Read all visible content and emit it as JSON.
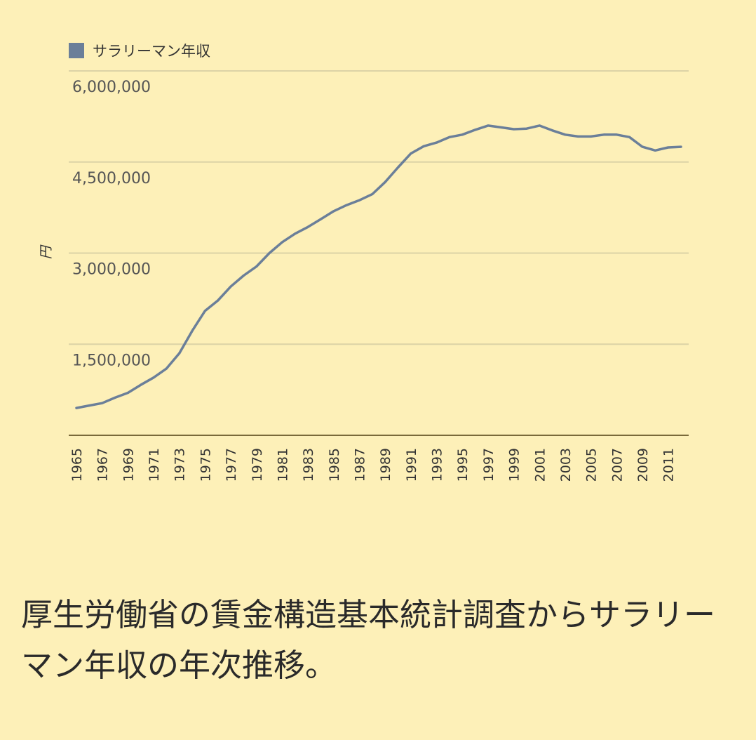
{
  "caption": "厚生労働省の賃金構造基本統計調査からサラリーマン年収の年次推移。",
  "chart_data": {
    "type": "line",
    "title": "",
    "xlabel": "",
    "ylabel": "円",
    "ylim": [
      0,
      6000000
    ],
    "yticks": [
      "1,500,000",
      "3,000,000",
      "4,500,000",
      "6,000,000"
    ],
    "ytick_values": [
      1500000,
      3000000,
      4500000,
      6000000
    ],
    "grid": true,
    "legend_position": "top-left",
    "x_tick_labels": [
      "1965",
      "1967",
      "1969",
      "1971",
      "1973",
      "1975",
      "1977",
      "1979",
      "1981",
      "1983",
      "1985",
      "1987",
      "1989",
      "1991",
      "1993",
      "1995",
      "1997",
      "1999",
      "2001",
      "2003",
      "2005",
      "2007",
      "2009",
      "2011"
    ],
    "x": [
      1965,
      1966,
      1967,
      1968,
      1969,
      1970,
      1971,
      1972,
      1973,
      1974,
      1975,
      1976,
      1977,
      1978,
      1979,
      1980,
      1981,
      1982,
      1983,
      1984,
      1985,
      1986,
      1987,
      1988,
      1989,
      1990,
      1991,
      1992,
      1993,
      1994,
      1995,
      1996,
      1997,
      1998,
      1999,
      2000,
      2001,
      2002,
      2003,
      2004,
      2005,
      2006,
      2007,
      2008,
      2009,
      2010,
      2011,
      2012
    ],
    "series": [
      {
        "name": "サラリーマン年収",
        "color": "#6b7f99",
        "values": [
          450000,
          490000,
          530000,
          620000,
          700000,
          830000,
          950000,
          1100000,
          1350000,
          1720000,
          2050000,
          2220000,
          2450000,
          2630000,
          2780000,
          3000000,
          3180000,
          3320000,
          3430000,
          3560000,
          3690000,
          3790000,
          3870000,
          3970000,
          4170000,
          4410000,
          4640000,
          4760000,
          4820000,
          4910000,
          4950000,
          5030000,
          5100000,
          5070000,
          5040000,
          5050000,
          5100000,
          5020000,
          4950000,
          4920000,
          4920000,
          4950000,
          4950000,
          4910000,
          4750000,
          4690000,
          4740000,
          4750000
        ]
      }
    ]
  },
  "colors": {
    "background": "#fdf0b8",
    "gridline": "#dcd3a6",
    "baseline": "#7a6a3a",
    "line": "#6b7f99"
  }
}
